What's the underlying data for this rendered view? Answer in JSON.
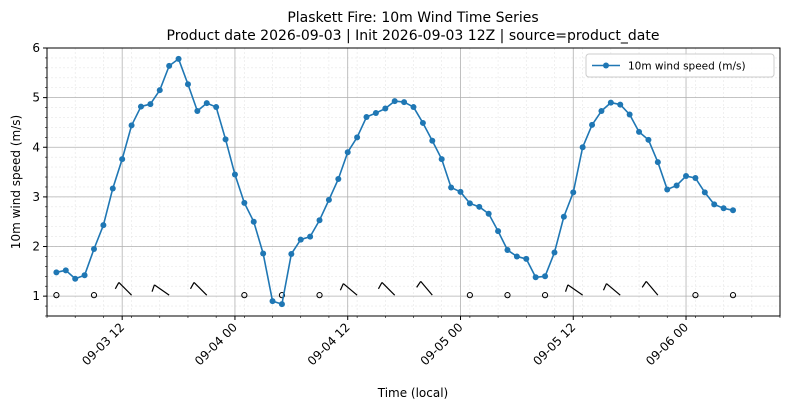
{
  "chart_data": {
    "type": "line",
    "title": "Plaskett Fire: 10m Wind Time Series",
    "subtitle": "Product date 2026-09-03 | Init 2026-09-03 12Z | source=product_date",
    "xlabel": "Time (local)",
    "ylabel": "10m wind speed (m/s)",
    "ylim": [
      0.6,
      6.0
    ],
    "yticks": [
      1,
      2,
      3,
      4,
      5,
      6
    ],
    "xlim": [
      "2026-09-03 04:00",
      "2026-09-06 10:00"
    ],
    "xticks": [
      {
        "label": "09-03 12",
        "t": "2026-09-03 12:00"
      },
      {
        "label": "09-04 00",
        "t": "2026-09-04 00:00"
      },
      {
        "label": "09-04 12",
        "t": "2026-09-04 12:00"
      },
      {
        "label": "09-05 00",
        "t": "2026-09-05 00:00"
      },
      {
        "label": "09-05 12",
        "t": "2026-09-05 12:00"
      },
      {
        "label": "09-06 00",
        "t": "2026-09-06 00:00"
      }
    ],
    "grid": true,
    "legend_position": "top-right",
    "line_color": "#1f77b4",
    "series": [
      {
        "name": "10m wind speed (m/s)",
        "x": [
          "2026-09-03 05:00",
          "2026-09-03 06:00",
          "2026-09-03 07:00",
          "2026-09-03 08:00",
          "2026-09-03 09:00",
          "2026-09-03 10:00",
          "2026-09-03 11:00",
          "2026-09-03 12:00",
          "2026-09-03 13:00",
          "2026-09-03 14:00",
          "2026-09-03 15:00",
          "2026-09-03 16:00",
          "2026-09-03 17:00",
          "2026-09-03 18:00",
          "2026-09-03 19:00",
          "2026-09-03 20:00",
          "2026-09-03 21:00",
          "2026-09-03 22:00",
          "2026-09-03 23:00",
          "2026-09-04 00:00",
          "2026-09-04 01:00",
          "2026-09-04 02:00",
          "2026-09-04 03:00",
          "2026-09-04 04:00",
          "2026-09-04 05:00",
          "2026-09-04 06:00",
          "2026-09-04 07:00",
          "2026-09-04 08:00",
          "2026-09-04 09:00",
          "2026-09-04 10:00",
          "2026-09-04 11:00",
          "2026-09-04 12:00",
          "2026-09-04 13:00",
          "2026-09-04 14:00",
          "2026-09-04 15:00",
          "2026-09-04 16:00",
          "2026-09-04 17:00",
          "2026-09-04 18:00",
          "2026-09-04 19:00",
          "2026-09-04 20:00",
          "2026-09-04 21:00",
          "2026-09-04 22:00",
          "2026-09-04 23:00",
          "2026-09-05 00:00",
          "2026-09-05 01:00",
          "2026-09-05 02:00",
          "2026-09-05 03:00",
          "2026-09-05 04:00",
          "2026-09-05 05:00",
          "2026-09-05 06:00",
          "2026-09-05 07:00",
          "2026-09-05 08:00",
          "2026-09-05 09:00",
          "2026-09-05 10:00",
          "2026-09-05 11:00",
          "2026-09-05 12:00",
          "2026-09-05 13:00",
          "2026-09-05 14:00",
          "2026-09-05 15:00",
          "2026-09-05 16:00",
          "2026-09-05 17:00",
          "2026-09-05 18:00",
          "2026-09-05 19:00",
          "2026-09-05 20:00",
          "2026-09-05 21:00",
          "2026-09-05 22:00",
          "2026-09-05 23:00",
          "2026-09-06 00:00",
          "2026-09-06 01:00",
          "2026-09-06 02:00",
          "2026-09-06 03:00",
          "2026-09-06 04:00",
          "2026-09-06 05:00"
        ],
        "values": [
          1.48,
          1.52,
          1.35,
          1.42,
          1.95,
          2.43,
          3.17,
          3.76,
          4.44,
          4.82,
          4.87,
          5.15,
          5.64,
          5.78,
          5.27,
          4.73,
          4.89,
          4.81,
          4.16,
          3.45,
          2.88,
          2.5,
          1.86,
          0.9,
          0.84,
          1.85,
          2.14,
          2.2,
          2.53,
          2.94,
          3.36,
          3.9,
          4.2,
          4.61,
          4.69,
          4.78,
          4.93,
          4.91,
          4.81,
          4.49,
          4.13,
          3.76,
          3.19,
          3.1,
          2.87,
          2.8,
          2.66,
          2.31,
          1.93,
          1.8,
          1.75,
          1.38,
          1.4,
          1.88,
          2.6,
          3.09,
          4.0,
          4.45,
          4.73,
          4.9,
          4.86,
          4.66,
          4.31,
          4.15,
          3.7,
          3.15,
          3.23,
          3.42,
          3.38,
          3.09,
          2.85,
          2.77,
          2.73
        ]
      }
    ],
    "wind_barbs": {
      "y": 1.02,
      "items": [
        {
          "t": "2026-09-03 05:00",
          "kind": "calm"
        },
        {
          "t": "2026-09-03 09:00",
          "kind": "calm"
        },
        {
          "t": "2026-09-03 13:00",
          "kind": "barb",
          "dir": 315,
          "flags": 1
        },
        {
          "t": "2026-09-03 17:00",
          "kind": "barb",
          "dir": 305,
          "flags": 1
        },
        {
          "t": "2026-09-03 21:00",
          "kind": "barb",
          "dir": 315,
          "flags": 1
        },
        {
          "t": "2026-09-04 01:00",
          "kind": "calm"
        },
        {
          "t": "2026-09-04 05:00",
          "kind": "calm"
        },
        {
          "t": "2026-09-04 09:00",
          "kind": "calm"
        },
        {
          "t": "2026-09-04 13:00",
          "kind": "barb",
          "dir": 310,
          "flags": 1
        },
        {
          "t": "2026-09-04 17:00",
          "kind": "barb",
          "dir": 315,
          "flags": 1
        },
        {
          "t": "2026-09-04 21:00",
          "kind": "barb",
          "dir": 320,
          "flags": 1
        },
        {
          "t": "2026-09-05 01:00",
          "kind": "calm"
        },
        {
          "t": "2026-09-05 05:00",
          "kind": "calm"
        },
        {
          "t": "2026-09-05 09:00",
          "kind": "calm"
        },
        {
          "t": "2026-09-05 13:00",
          "kind": "barb",
          "dir": 305,
          "flags": 1
        },
        {
          "t": "2026-09-05 17:00",
          "kind": "barb",
          "dir": 310,
          "flags": 1
        },
        {
          "t": "2026-09-05 21:00",
          "kind": "barb",
          "dir": 320,
          "flags": 1
        },
        {
          "t": "2026-09-06 01:00",
          "kind": "calm"
        },
        {
          "t": "2026-09-06 05:00",
          "kind": "calm"
        }
      ]
    }
  }
}
